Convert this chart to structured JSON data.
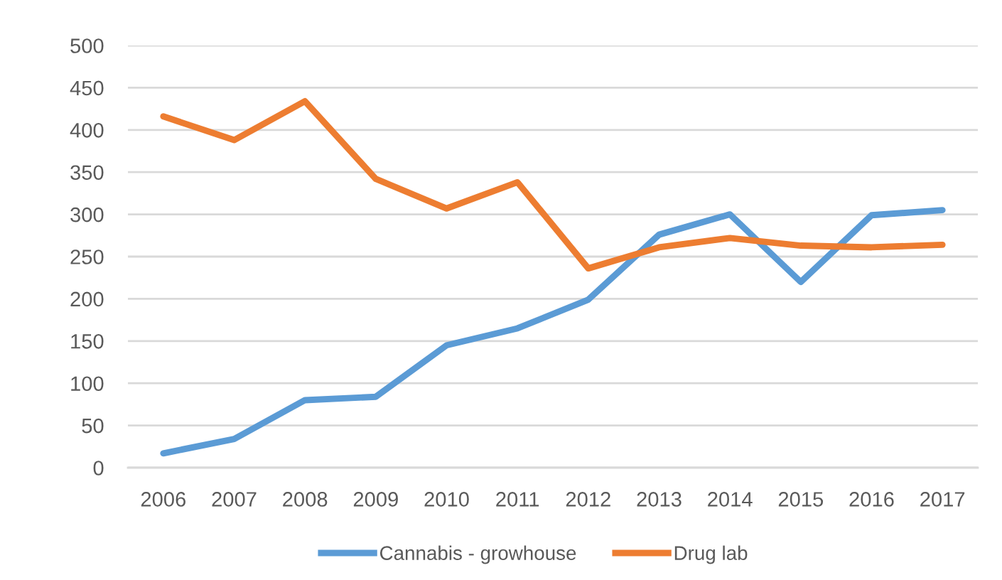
{
  "chart_data": {
    "type": "line",
    "categories": [
      "2006",
      "2007",
      "2008",
      "2009",
      "2010",
      "2011",
      "2012",
      "2013",
      "2014",
      "2015",
      "2016",
      "2017"
    ],
    "series": [
      {
        "name": "Cannabis - growhouse",
        "color": "#5b9bd5",
        "values": [
          17,
          34,
          80,
          84,
          145,
          165,
          199,
          276,
          300,
          220,
          299,
          305
        ]
      },
      {
        "name": "Drug lab",
        "color": "#ed7d31",
        "values": [
          416,
          388,
          434,
          342,
          307,
          338,
          236,
          261,
          272,
          263,
          261,
          264
        ]
      }
    ],
    "ylim": [
      0,
      500
    ],
    "yticks": [
      0,
      50,
      100,
      150,
      200,
      250,
      300,
      350,
      400,
      450,
      500
    ],
    "grid": "y",
    "legend": "bottom",
    "marker": "none",
    "line_style": "solid"
  }
}
